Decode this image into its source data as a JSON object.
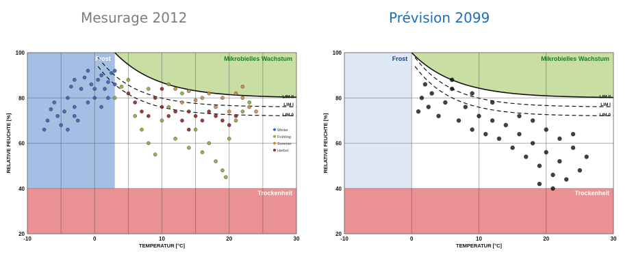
{
  "panels": {
    "left_title": "Mesurage 2012",
    "right_title": "Prévision 2099"
  },
  "chart_data": [
    {
      "type": "scatter",
      "title": "Mesurage 2012",
      "xlabel": "TEMPERATUR [°C]",
      "ylabel": "RELATIVE FEUCHTE [%]",
      "xlim": [
        -10,
        30
      ],
      "ylim": [
        20,
        100
      ],
      "xticks": [
        "-10",
        "0",
        "10",
        "20",
        "30"
      ],
      "yticks": [
        "20",
        "40",
        "60",
        "80",
        "100"
      ],
      "grid": true,
      "legend_position": "right",
      "regions": [
        {
          "label": "Frost",
          "color": "#9fbbe3",
          "x_range": [
            -10,
            3
          ],
          "y_range": [
            40,
            100
          ]
        },
        {
          "label": "Mikrobielles Wachstum",
          "color": "#c6dc9e",
          "x_range": [
            3,
            30
          ],
          "y_range": [
            80,
            100
          ]
        },
        {
          "label": "Trockenheit",
          "color": "#e98b8e",
          "x_range": [
            -10,
            30
          ],
          "y_range": [
            20,
            40
          ]
        }
      ],
      "curve_labels": [
        "LIM II",
        "LIM I",
        "LIM 0"
      ],
      "series": [
        {
          "name": "Winter",
          "color": "#3a64b3",
          "points": [
            [
              -7.5,
              66
            ],
            [
              -7,
              70
            ],
            [
              -6.5,
              75
            ],
            [
              -6,
              78
            ],
            [
              -5.5,
              72
            ],
            [
              -5,
              68
            ],
            [
              -4.5,
              74
            ],
            [
              -4,
              80
            ],
            [
              -3.5,
              85
            ],
            [
              -3,
              88
            ],
            [
              -3,
              76
            ],
            [
              -2.5,
              70
            ],
            [
              -2,
              84
            ],
            [
              -1.5,
              89
            ],
            [
              -1,
              92
            ],
            [
              -0.5,
              86
            ],
            [
              0,
              80
            ],
            [
              0.5,
              88
            ],
            [
              1,
              90
            ],
            [
              1.5,
              84
            ],
            [
              2,
              87
            ],
            [
              2.5,
              91
            ],
            [
              3,
              86
            ],
            [
              -4,
              66
            ],
            [
              -3,
              72
            ],
            [
              -1,
              78
            ],
            [
              0,
              84
            ],
            [
              1,
              76
            ],
            [
              2,
              80
            ],
            [
              3,
              92
            ]
          ]
        },
        {
          "name": "Frühling",
          "color": "#8da83b",
          "points": [
            [
              3,
              80
            ],
            [
              4,
              85
            ],
            [
              5,
              88
            ],
            [
              6,
              72
            ],
            [
              7,
              66
            ],
            [
              8,
              60
            ],
            [
              9,
              55
            ],
            [
              10,
              70
            ],
            [
              11,
              76
            ],
            [
              12,
              62
            ],
            [
              14,
              58
            ],
            [
              16,
              56
            ],
            [
              18,
              52
            ],
            [
              19,
              48
            ],
            [
              19.5,
              45
            ],
            [
              17,
              60
            ],
            [
              15,
              66
            ],
            [
              13,
              82
            ],
            [
              11,
              86
            ],
            [
              8,
              84
            ],
            [
              20,
              62
            ],
            [
              21,
              70
            ],
            [
              22,
              74
            ],
            [
              23,
              78
            ]
          ]
        },
        {
          "name": "Sommer",
          "color": "#c98a48",
          "points": [
            [
              12,
              84
            ],
            [
              14,
              83
            ],
            [
              16,
              80
            ],
            [
              18,
              76
            ],
            [
              20,
              74
            ],
            [
              21,
              82
            ],
            [
              22,
              80
            ],
            [
              23,
              76
            ],
            [
              24,
              74
            ],
            [
              17,
              82
            ],
            [
              19,
              80
            ],
            [
              15,
              79
            ],
            [
              13,
              78
            ],
            [
              22,
              85
            ]
          ]
        },
        {
          "name": "Herbst",
          "color": "#8c2a2a",
          "points": [
            [
              5,
              82
            ],
            [
              6,
              78
            ],
            [
              7,
              74
            ],
            [
              8,
              72
            ],
            [
              9,
              80
            ],
            [
              10,
              76
            ],
            [
              11,
              72
            ],
            [
              12,
              74
            ],
            [
              13,
              70
            ],
            [
              14,
              74
            ],
            [
              15,
              72
            ],
            [
              16,
              70
            ],
            [
              17,
              74
            ],
            [
              18,
              72
            ],
            [
              19,
              70
            ],
            [
              20,
              68
            ],
            [
              21,
              72
            ],
            [
              10,
              84
            ],
            [
              14,
              66
            ]
          ]
        }
      ]
    },
    {
      "type": "scatter",
      "title": "Prévision 2099",
      "xlabel": "TEMPERATUR [°C]",
      "ylabel": "RELATIVE FEUCHTE [%]",
      "xlim": [
        -10,
        30
      ],
      "ylim": [
        20,
        100
      ],
      "xticks": [
        "-10",
        "0",
        "10",
        "20",
        "30"
      ],
      "yticks": [
        "20",
        "40",
        "60",
        "80",
        "100"
      ],
      "grid": true,
      "regions": [
        {
          "label": "Frost",
          "color": "#dbe6f4",
          "x_range": [
            -10,
            0
          ],
          "y_range": [
            40,
            100
          ]
        },
        {
          "label": "Mikrobielles Wachstum",
          "color": "#c6dc9e",
          "x_range": [
            0,
            30
          ],
          "y_range": [
            80,
            100
          ]
        },
        {
          "label": "Trockenheit",
          "color": "#e98b8e",
          "x_range": [
            -10,
            30
          ],
          "y_range": [
            20,
            40
          ]
        }
      ],
      "curve_labels": [
        "LIM II",
        "LIM I",
        "LIM 0"
      ],
      "series": [
        {
          "color": "#000000",
          "points": [
            [
              1,
              74
            ],
            [
              1.5,
              80
            ],
            [
              2,
              86
            ],
            [
              2.5,
              76
            ],
            [
              3,
              82
            ],
            [
              4,
              72
            ],
            [
              5,
              78
            ],
            [
              6,
              84
            ],
            [
              7,
              70
            ],
            [
              8,
              76
            ],
            [
              9,
              66
            ],
            [
              10,
              72
            ],
            [
              11,
              64
            ],
            [
              12,
              70
            ],
            [
              13,
              62
            ],
            [
              14,
              68
            ],
            [
              15,
              58
            ],
            [
              16,
              64
            ],
            [
              17,
              54
            ],
            [
              18,
              60
            ],
            [
              19,
              50
            ],
            [
              20,
              56
            ],
            [
              21,
              46
            ],
            [
              22,
              52
            ],
            [
              23,
              44
            ],
            [
              24,
              58
            ],
            [
              25,
              48
            ],
            [
              26,
              54
            ],
            [
              20,
              66
            ],
            [
              18,
              70
            ],
            [
              16,
              72
            ],
            [
              22,
              62
            ],
            [
              12,
              78
            ],
            [
              9,
              82
            ],
            [
              6,
              88
            ],
            [
              24,
              64
            ],
            [
              21,
              40
            ],
            [
              19,
              42
            ]
          ]
        }
      ]
    }
  ]
}
